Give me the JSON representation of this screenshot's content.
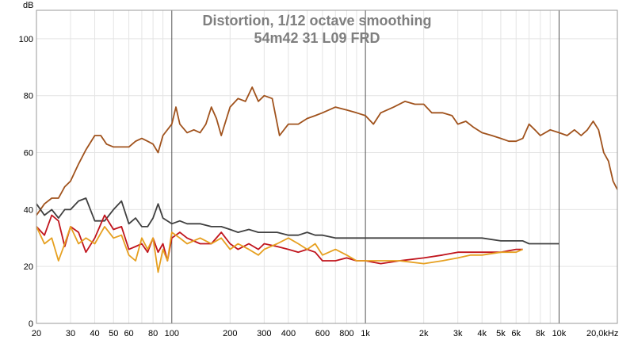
{
  "chart_data": {
    "type": "line",
    "title": "Distortion, 1/12 octave smoothing",
    "subtitle": "54m42 31 L09 FRD",
    "ylabel": "dB",
    "xlabel": "",
    "x_scale": "log",
    "xlim": [
      20,
      20000
    ],
    "ylim": [
      0,
      110
    ],
    "grid": true,
    "x_tick_labels": [
      {
        "v": 20,
        "t": "20"
      },
      {
        "v": 30,
        "t": "30"
      },
      {
        "v": 40,
        "t": "40"
      },
      {
        "v": 50,
        "t": "50"
      },
      {
        "v": 60,
        "t": "60"
      },
      {
        "v": 80,
        "t": "80"
      },
      {
        "v": 100,
        "t": "100"
      },
      {
        "v": 200,
        "t": "200"
      },
      {
        "v": 300,
        "t": "300"
      },
      {
        "v": 400,
        "t": "400"
      },
      {
        "v": 600,
        "t": "600"
      },
      {
        "v": 800,
        "t": "800"
      },
      {
        "v": 1000,
        "t": "1k"
      },
      {
        "v": 2000,
        "t": "2k"
      },
      {
        "v": 3000,
        "t": "3k"
      },
      {
        "v": 4000,
        "t": "4k"
      },
      {
        "v": 5000,
        "t": "5k"
      },
      {
        "v": 6000,
        "t": "6k"
      },
      {
        "v": 8000,
        "t": "8k"
      },
      {
        "v": 10000,
        "t": "10k"
      },
      {
        "v": 20000,
        "t": "20,0kHz"
      }
    ],
    "y_ticks": [
      0,
      20,
      40,
      60,
      80,
      100
    ],
    "series": [
      {
        "color": "#a0521c",
        "points": [
          [
            20,
            38
          ],
          [
            22,
            42
          ],
          [
            24,
            44
          ],
          [
            26,
            44
          ],
          [
            28,
            48
          ],
          [
            30,
            50
          ],
          [
            33,
            56
          ],
          [
            36,
            61
          ],
          [
            40,
            66
          ],
          [
            43,
            66
          ],
          [
            46,
            63
          ],
          [
            50,
            62
          ],
          [
            55,
            62
          ],
          [
            60,
            62
          ],
          [
            65,
            64
          ],
          [
            70,
            65
          ],
          [
            75,
            64
          ],
          [
            80,
            63
          ],
          [
            85,
            60
          ],
          [
            90,
            66
          ],
          [
            100,
            70
          ],
          [
            105,
            76
          ],
          [
            110,
            70
          ],
          [
            120,
            67
          ],
          [
            130,
            68
          ],
          [
            140,
            67
          ],
          [
            150,
            70
          ],
          [
            160,
            76
          ],
          [
            170,
            72
          ],
          [
            180,
            66
          ],
          [
            200,
            76
          ],
          [
            220,
            79
          ],
          [
            240,
            78
          ],
          [
            260,
            83
          ],
          [
            280,
            78
          ],
          [
            300,
            80
          ],
          [
            330,
            79
          ],
          [
            360,
            66
          ],
          [
            400,
            70
          ],
          [
            450,
            70
          ],
          [
            500,
            72
          ],
          [
            550,
            73
          ],
          [
            600,
            74
          ],
          [
            700,
            76
          ],
          [
            800,
            75
          ],
          [
            900,
            74
          ],
          [
            1000,
            73
          ],
          [
            1100,
            70
          ],
          [
            1200,
            74
          ],
          [
            1400,
            76
          ],
          [
            1600,
            78
          ],
          [
            1800,
            77
          ],
          [
            2000,
            77
          ],
          [
            2200,
            74
          ],
          [
            2500,
            74
          ],
          [
            2800,
            73
          ],
          [
            3000,
            70
          ],
          [
            3300,
            71
          ],
          [
            3600,
            69
          ],
          [
            4000,
            67
          ],
          [
            4500,
            66
          ],
          [
            5000,
            65
          ],
          [
            5500,
            64
          ],
          [
            6000,
            64
          ],
          [
            6500,
            65
          ],
          [
            7000,
            70
          ],
          [
            7500,
            68
          ],
          [
            8000,
            66
          ],
          [
            9000,
            68
          ],
          [
            10000,
            67
          ],
          [
            11000,
            66
          ],
          [
            12000,
            68
          ],
          [
            13000,
            66
          ],
          [
            14000,
            68
          ],
          [
            15000,
            71
          ],
          [
            16000,
            68
          ],
          [
            17000,
            60
          ],
          [
            18000,
            57
          ],
          [
            19000,
            50
          ],
          [
            20000,
            47
          ]
        ]
      },
      {
        "color": "#404040",
        "points": [
          [
            20,
            42
          ],
          [
            22,
            38
          ],
          [
            24,
            40
          ],
          [
            26,
            37
          ],
          [
            28,
            40
          ],
          [
            30,
            40
          ],
          [
            33,
            43
          ],
          [
            36,
            44
          ],
          [
            40,
            36
          ],
          [
            45,
            36
          ],
          [
            50,
            40
          ],
          [
            55,
            43
          ],
          [
            60,
            35
          ],
          [
            65,
            37
          ],
          [
            70,
            34
          ],
          [
            75,
            34
          ],
          [
            80,
            37
          ],
          [
            85,
            42
          ],
          [
            90,
            37
          ],
          [
            100,
            35
          ],
          [
            110,
            36
          ],
          [
            120,
            35
          ],
          [
            140,
            35
          ],
          [
            160,
            34
          ],
          [
            180,
            34
          ],
          [
            200,
            33
          ],
          [
            220,
            32
          ],
          [
            250,
            33
          ],
          [
            280,
            32
          ],
          [
            300,
            32
          ],
          [
            350,
            32
          ],
          [
            400,
            31
          ],
          [
            450,
            31
          ],
          [
            500,
            32
          ],
          [
            550,
            31
          ],
          [
            600,
            31
          ],
          [
            700,
            30
          ],
          [
            800,
            30
          ],
          [
            1000,
            30
          ],
          [
            1200,
            30
          ],
          [
            1500,
            30
          ],
          [
            2000,
            30
          ],
          [
            2500,
            30
          ],
          [
            3000,
            30
          ],
          [
            4000,
            30
          ],
          [
            5000,
            29
          ],
          [
            6000,
            29
          ],
          [
            6500,
            29
          ],
          [
            7000,
            28
          ],
          [
            8000,
            28
          ],
          [
            9000,
            28
          ],
          [
            10000,
            28
          ]
        ]
      },
      {
        "color": "#c0141c",
        "points": [
          [
            20,
            34
          ],
          [
            22,
            31
          ],
          [
            24,
            38
          ],
          [
            26,
            36
          ],
          [
            28,
            27
          ],
          [
            30,
            34
          ],
          [
            33,
            32
          ],
          [
            36,
            25
          ],
          [
            40,
            30
          ],
          [
            45,
            38
          ],
          [
            50,
            33
          ],
          [
            55,
            34
          ],
          [
            60,
            26
          ],
          [
            65,
            27
          ],
          [
            70,
            28
          ],
          [
            75,
            25
          ],
          [
            80,
            30
          ],
          [
            85,
            25
          ],
          [
            90,
            28
          ],
          [
            95,
            22
          ],
          [
            100,
            30
          ],
          [
            110,
            32
          ],
          [
            120,
            30
          ],
          [
            140,
            28
          ],
          [
            160,
            28
          ],
          [
            180,
            32
          ],
          [
            200,
            28
          ],
          [
            220,
            26
          ],
          [
            250,
            28
          ],
          [
            280,
            26
          ],
          [
            300,
            28
          ],
          [
            350,
            27
          ],
          [
            400,
            26
          ],
          [
            450,
            25
          ],
          [
            500,
            26
          ],
          [
            550,
            25
          ],
          [
            600,
            22
          ],
          [
            700,
            22
          ],
          [
            800,
            23
          ],
          [
            900,
            22
          ],
          [
            1000,
            22
          ],
          [
            1200,
            21
          ],
          [
            1500,
            22
          ],
          [
            2000,
            23
          ],
          [
            2500,
            24
          ],
          [
            3000,
            25
          ],
          [
            3500,
            25
          ],
          [
            4000,
            25
          ],
          [
            5000,
            25
          ],
          [
            6000,
            26
          ],
          [
            6500,
            26
          ]
        ]
      },
      {
        "color": "#e6a020",
        "points": [
          [
            20,
            34
          ],
          [
            22,
            28
          ],
          [
            24,
            30
          ],
          [
            26,
            22
          ],
          [
            28,
            28
          ],
          [
            30,
            34
          ],
          [
            33,
            28
          ],
          [
            36,
            30
          ],
          [
            40,
            28
          ],
          [
            45,
            34
          ],
          [
            50,
            30
          ],
          [
            55,
            31
          ],
          [
            60,
            24
          ],
          [
            65,
            22
          ],
          [
            70,
            30
          ],
          [
            75,
            26
          ],
          [
            80,
            30
          ],
          [
            85,
            18
          ],
          [
            90,
            26
          ],
          [
            95,
            22
          ],
          [
            100,
            32
          ],
          [
            110,
            30
          ],
          [
            120,
            28
          ],
          [
            140,
            30
          ],
          [
            160,
            28
          ],
          [
            180,
            30
          ],
          [
            200,
            26
          ],
          [
            220,
            28
          ],
          [
            250,
            26
          ],
          [
            280,
            24
          ],
          [
            300,
            26
          ],
          [
            350,
            28
          ],
          [
            400,
            30
          ],
          [
            450,
            28
          ],
          [
            500,
            26
          ],
          [
            550,
            28
          ],
          [
            600,
            24
          ],
          [
            700,
            26
          ],
          [
            800,
            24
          ],
          [
            900,
            22
          ],
          [
            1000,
            22
          ],
          [
            1200,
            22
          ],
          [
            1500,
            22
          ],
          [
            2000,
            21
          ],
          [
            2500,
            22
          ],
          [
            3000,
            23
          ],
          [
            3500,
            24
          ],
          [
            4000,
            24
          ],
          [
            5000,
            25
          ],
          [
            6000,
            25
          ],
          [
            6500,
            26
          ]
        ]
      }
    ]
  }
}
